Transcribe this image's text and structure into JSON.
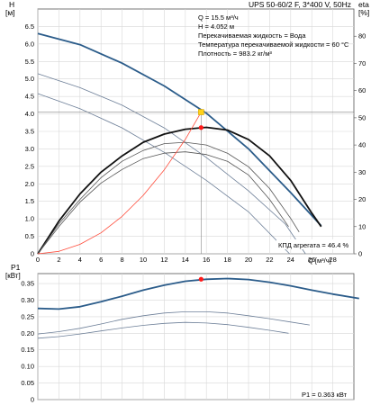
{
  "chart_data": [
    {
      "type": "line",
      "title": "UPS 50-60/2 F, 3*400 V, 50Hz",
      "ylabel": "H",
      "ylabel_unit": "[м]",
      "y2label": "eta",
      "y2label_unit": "[%]",
      "xlabel": "Q [м³/ч]",
      "xlim": [
        0,
        30
      ],
      "ylim": [
        0,
        7.0
      ],
      "y2lim": [
        0,
        90
      ],
      "xticks": [
        "0",
        "2",
        "4",
        "6",
        "8",
        "10",
        "12",
        "14",
        "16",
        "18",
        "20",
        "22",
        "24",
        "26",
        "28"
      ],
      "yticks": [
        "0",
        "0.5",
        "1.0",
        "1.5",
        "2.0",
        "2.5",
        "3.0",
        "3.5",
        "4.0",
        "4.5",
        "5.0",
        "5.5",
        "6.0",
        "6.5"
      ],
      "y2ticks": [
        "0",
        "10",
        "20",
        "30",
        "40",
        "50",
        "60",
        "70",
        "80"
      ],
      "grid": true,
      "info": [
        "Q = 15.5 м³/ч",
        "H = 4.052 м",
        "Перекачиваемая жидкость = Вода",
        "Температура перекачиваемой жидкости = 60 °C",
        "Плотность = 983.2 кг/м³"
      ],
      "annotation": "КПД агрегата = 46.4 %",
      "operating_point": {
        "q": 15.5,
        "h": 4.052,
        "eta": 46.4
      },
      "series": [
        {
          "role": "head-speed-1",
          "x": [
            0,
            4,
            8,
            12,
            16,
            20,
            24,
            26.9
          ],
          "y": [
            6.3,
            5.98,
            5.45,
            4.8,
            4.02,
            3.0,
            1.75,
            0.8
          ]
        },
        {
          "role": "head-speed-2",
          "x": [
            0,
            4,
            8,
            12,
            16,
            20,
            23.5,
            25.4
          ],
          "y": [
            5.15,
            4.75,
            4.25,
            3.6,
            2.75,
            1.8,
            0.85,
            0
          ]
        },
        {
          "role": "head-speed-3",
          "x": [
            0,
            4,
            8,
            12,
            16,
            20,
            23.9
          ],
          "y": [
            4.58,
            4.15,
            3.6,
            2.9,
            2.1,
            1.2,
            0
          ]
        },
        {
          "role": "eta-speed-1",
          "x": [
            0,
            2,
            4,
            6,
            8,
            10,
            12,
            14,
            16,
            18,
            20,
            22,
            24,
            26,
            26.9
          ],
          "y": [
            0,
            12,
            22,
            30,
            36,
            41,
            44,
            45.8,
            46.5,
            45.5,
            42,
            36,
            27,
            15,
            10
          ]
        },
        {
          "role": "eta-speed-2",
          "x": [
            0,
            2,
            4,
            6,
            8,
            10,
            12,
            14,
            16,
            18,
            20,
            22,
            24,
            24.8
          ],
          "y": [
            0,
            11,
            20,
            28,
            34,
            38,
            40.5,
            41,
            40,
            37,
            32,
            24,
            13,
            8
          ]
        },
        {
          "role": "eta-speed-3",
          "x": [
            0,
            2,
            4,
            6,
            8,
            10,
            12,
            14,
            16,
            18,
            20,
            22,
            23.8
          ],
          "y": [
            0,
            10,
            19,
            26,
            31,
            35,
            37,
            37.5,
            36.5,
            34,
            29,
            20,
            10
          ]
        },
        {
          "role": "system-curve",
          "x": [
            0,
            2,
            4,
            6,
            8,
            10,
            12,
            14,
            15.5
          ],
          "y": [
            0,
            0.07,
            0.27,
            0.6,
            1.07,
            1.67,
            2.4,
            3.27,
            4.052
          ]
        }
      ]
    },
    {
      "type": "line",
      "ylabel": "P1",
      "ylabel_unit": "[кВт]",
      "xlim": [
        0,
        30
      ],
      "ylim": [
        0,
        0.38
      ],
      "yticks": [
        "0",
        "0.05",
        "0.10",
        "0.15",
        "0.20",
        "0.25",
        "0.30",
        "0.35"
      ],
      "grid": true,
      "annotation": "P1 = 0.363 кВт",
      "operating_point": {
        "q": 15.5,
        "p1": 0.363
      },
      "series": [
        {
          "role": "power-speed-1",
          "x": [
            0,
            2,
            4,
            6,
            8,
            10,
            12,
            14,
            16,
            18,
            20,
            22,
            24,
            26,
            28,
            30.5
          ],
          "y": [
            0.275,
            0.273,
            0.28,
            0.295,
            0.312,
            0.33,
            0.345,
            0.357,
            0.363,
            0.365,
            0.362,
            0.354,
            0.343,
            0.33,
            0.318,
            0.305
          ]
        },
        {
          "role": "power-speed-2",
          "x": [
            0,
            2,
            4,
            6,
            8,
            10,
            12,
            14,
            16,
            18,
            20,
            22,
            24,
            25.8
          ],
          "y": [
            0.198,
            0.205,
            0.215,
            0.228,
            0.242,
            0.253,
            0.261,
            0.265,
            0.265,
            0.261,
            0.253,
            0.244,
            0.234,
            0.225
          ]
        },
        {
          "role": "power-speed-3",
          "x": [
            0,
            2,
            4,
            6,
            8,
            10,
            12,
            14,
            16,
            18,
            20,
            22,
            23.8
          ],
          "y": [
            0.185,
            0.19,
            0.198,
            0.207,
            0.216,
            0.224,
            0.23,
            0.233,
            0.231,
            0.226,
            0.218,
            0.209,
            0.2
          ]
        }
      ]
    }
  ]
}
